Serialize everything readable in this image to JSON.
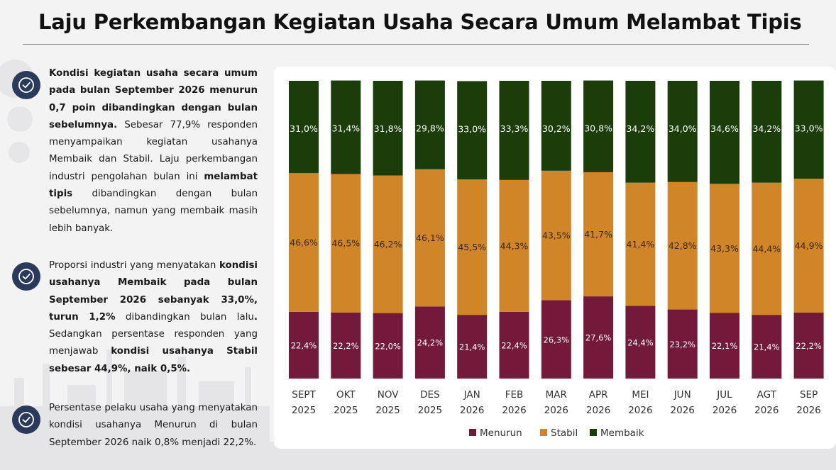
{
  "header": {
    "title": "Laju Perkembangan Kegiatan Usaha Secara Umum Melambat Tipis"
  },
  "bullets": [
    {
      "icon": "check-circle-icon",
      "segments": [
        {
          "text": "Kondisi kegiatan usaha secara umum pada bulan September 2026 menurun 0,7 poin dibandingkan dengan bulan sebelumnya.",
          "bold": true
        },
        {
          "text": " Sebesar 77,9% responden menyampaikan kegiatan usahanya Membaik dan Stabil. Laju perkembangan industri pengolahan bulan ini ",
          "bold": false
        },
        {
          "text": "melambat tipis",
          "bold": true
        },
        {
          "text": " dibandingkan dengan bulan sebelumnya, namun yang membaik masih lebih banyak.",
          "bold": false
        }
      ]
    },
    {
      "icon": "check-circle-icon",
      "segments": [
        {
          "text": "Proporsi industri yang menyatakan ",
          "bold": false
        },
        {
          "text": "kondisi usahanya Membaik pada bulan September 2026 sebanyak 33,0%, turun 1,2%",
          "bold": true
        },
        {
          "text": " dibandingkan bulan lalu",
          "bold": false
        },
        {
          "text": ".",
          "bold": true
        },
        {
          "text": " Sedangkan persentase responden yang menjawab ",
          "bold": false
        },
        {
          "text": "kondisi usahanya Stabil sebesar 44,9%, naik 0,5%.",
          "bold": true
        }
      ]
    },
    {
      "icon": "check-circle-icon",
      "segments": [
        {
          "text": "Persentase pelaku usaha yang menyatakan kondisi usahanya Menurun di bulan September 2026 naik 0,8% menjadi 22,2%.",
          "bold": false
        }
      ]
    }
  ],
  "colors": {
    "menurun": "#73193a",
    "stabil": "#cf8528",
    "membaik": "#1b3d0a",
    "icon_bg": "#2b3a5b"
  },
  "chart_data": {
    "type": "bar",
    "stacked": true,
    "percent": true,
    "categories": [
      [
        "SEPT",
        "2025"
      ],
      [
        "OKT",
        "2025"
      ],
      [
        "NOV",
        "2025"
      ],
      [
        "DES",
        "2025"
      ],
      [
        "JAN",
        "2026"
      ],
      [
        "FEB",
        "2026"
      ],
      [
        "MAR",
        "2026"
      ],
      [
        "APR",
        "2026"
      ],
      [
        "MEI",
        "2026"
      ],
      [
        "JUN",
        "2026"
      ],
      [
        "JUL",
        "2026"
      ],
      [
        "AGT",
        "2026"
      ],
      [
        "SEP",
        "2026"
      ]
    ],
    "series": [
      {
        "name": "Menurun",
        "color": "#73193a",
        "values": [
          22.4,
          22.2,
          22.0,
          24.2,
          21.4,
          22.4,
          26.3,
          27.6,
          24.4,
          23.2,
          22.1,
          21.4,
          22.2
        ],
        "labels": [
          "22,4%",
          "22,2%",
          "22,0%",
          "24,2%",
          "21,4%",
          "22,4%",
          "26,3%",
          "27,6%",
          "24,4%",
          "23,2%",
          "22,1%",
          "21,4%",
          "22,2%"
        ]
      },
      {
        "name": "Stabil",
        "color": "#cf8528",
        "values": [
          46.6,
          46.5,
          46.2,
          46.1,
          45.5,
          44.3,
          43.5,
          41.7,
          41.4,
          42.8,
          43.3,
          44.4,
          44.9
        ],
        "labels": [
          "46,6%",
          "46,5%",
          "46,2%",
          "46,1%",
          "45,5%",
          "44,3%",
          "43,5%",
          "41,7%",
          "41,4%",
          "42,8%",
          "43,3%",
          "44,4%",
          "44,9%"
        ]
      },
      {
        "name": "Membaik",
        "color": "#1b3d0a",
        "values": [
          31.0,
          31.4,
          31.8,
          29.8,
          33.0,
          33.3,
          30.2,
          30.8,
          34.2,
          34.0,
          34.6,
          34.2,
          33.0
        ],
        "labels": [
          "31,0%",
          "31,4%",
          "31,8%",
          "29,8%",
          "33,0%",
          "33,3%",
          "30,2%",
          "30,8%",
          "34,2%",
          "34,0%",
          "34,6%",
          "34,2%",
          "33,0%"
        ]
      }
    ],
    "ylim": [
      0,
      100
    ],
    "grid": false,
    "legend": "bottom"
  }
}
